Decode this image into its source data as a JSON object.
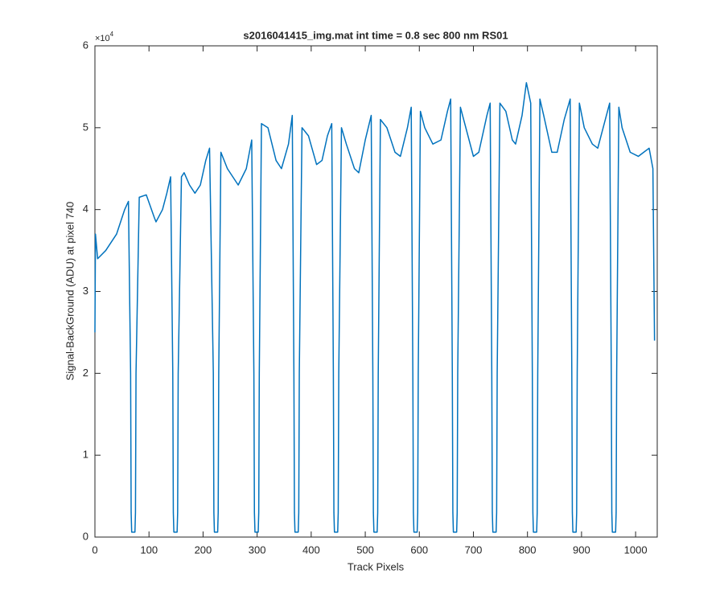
{
  "chart_data": {
    "type": "line",
    "title": "s2016041415_img.mat int time = 0.8 sec  800 nm RS01",
    "xlabel": "Track Pixels",
    "ylabel": "Signal-BackGround (ADU) at pixel 740",
    "y_multiplier": "×10",
    "y_multiplier_exponent": "4",
    "xlim": [
      0,
      1040
    ],
    "ylim": [
      0,
      60000
    ],
    "xticks": [
      0,
      100,
      200,
      300,
      400,
      500,
      600,
      700,
      800,
      900,
      1000
    ],
    "yticks": [
      0,
      {
        "value": 10000,
        "label": "1"
      },
      {
        "value": 20000,
        "label": "2"
      },
      {
        "value": 30000,
        "label": "3"
      },
      {
        "value": 40000,
        "label": "4"
      },
      {
        "value": 50000,
        "label": "5"
      },
      {
        "value": 60000,
        "label": "6"
      }
    ],
    "grid": false,
    "series": [
      {
        "color": "#0072bd",
        "x": [
          0,
          1,
          5,
          20,
          40,
          55,
          62,
          66,
          67,
          68,
          74,
          75,
          76,
          82,
          95,
          110,
          113,
          125,
          133,
          140,
          144,
          145,
          146,
          152,
          153,
          154,
          160,
          165,
          175,
          185,
          195,
          205,
          212,
          219,
          220,
          221,
          227,
          228,
          229,
          233,
          245,
          265,
          280,
          290,
          294,
          295,
          296,
          302,
          303,
          304,
          308,
          320,
          335,
          345,
          358,
          365,
          368,
          369,
          370,
          376,
          377,
          378,
          383,
          395,
          410,
          420,
          430,
          438,
          441,
          442,
          443,
          449,
          450,
          451,
          456,
          465,
          480,
          488,
          500,
          511,
          514,
          515,
          516,
          522,
          523,
          524,
          528,
          540,
          555,
          565,
          578,
          585,
          588,
          589,
          590,
          596,
          597,
          598,
          602,
          610,
          625,
          640,
          652,
          658,
          661,
          662,
          663,
          669,
          670,
          671,
          676,
          682,
          700,
          710,
          725,
          731,
          734,
          735,
          736,
          742,
          743,
          744,
          749,
          760,
          772,
          778,
          790,
          798,
          806,
          809,
          810,
          811,
          817,
          818,
          819,
          823,
          830,
          845,
          855,
          868,
          879,
          882,
          883,
          884,
          890,
          891,
          892,
          896,
          905,
          920,
          930,
          940,
          952,
          955,
          956,
          957,
          963,
          964,
          965,
          969,
          975,
          990,
          1005,
          1015,
          1025,
          1032,
          1035
        ],
        "values": [
          25000,
          37000,
          34000,
          35000,
          37000,
          40000,
          41000,
          20000,
          3000,
          600,
          600,
          3000,
          20000,
          41500,
          41800,
          39000,
          38500,
          40000,
          42000,
          44000,
          20000,
          3000,
          600,
          600,
          3000,
          20000,
          44000,
          44500,
          43000,
          42000,
          43000,
          46000,
          47500,
          20000,
          3000,
          600,
          600,
          3000,
          20000,
          47000,
          45000,
          43000,
          45000,
          48500,
          20000,
          3000,
          600,
          600,
          3000,
          20000,
          50500,
          50000,
          46000,
          45000,
          48000,
          51500,
          20000,
          3000,
          600,
          600,
          3000,
          20000,
          50000,
          49000,
          45500,
          46000,
          49000,
          50500,
          20000,
          3000,
          600,
          600,
          3000,
          20000,
          50000,
          48000,
          45000,
          44500,
          48500,
          51500,
          20000,
          3000,
          600,
          600,
          3000,
          20000,
          51000,
          50000,
          47000,
          46500,
          50000,
          52500,
          20000,
          3000,
          600,
          600,
          3000,
          20000,
          52000,
          50000,
          48000,
          48500,
          52000,
          53500,
          20000,
          3000,
          600,
          600,
          3000,
          20000,
          52500,
          51000,
          46500,
          47000,
          51500,
          53000,
          20000,
          3000,
          600,
          600,
          3000,
          20000,
          53000,
          52000,
          48500,
          48000,
          51500,
          55500,
          53000,
          20000,
          3000,
          600,
          600,
          3000,
          20000,
          53500,
          51500,
          47000,
          47000,
          51000,
          53500,
          20000,
          3000,
          600,
          600,
          3000,
          20000,
          53000,
          50000,
          48000,
          47500,
          50000,
          53000,
          20000,
          3000,
          600,
          600,
          3000,
          20000,
          52500,
          50000,
          47000,
          46500,
          47000,
          47500,
          45000,
          24000
        ]
      }
    ]
  }
}
